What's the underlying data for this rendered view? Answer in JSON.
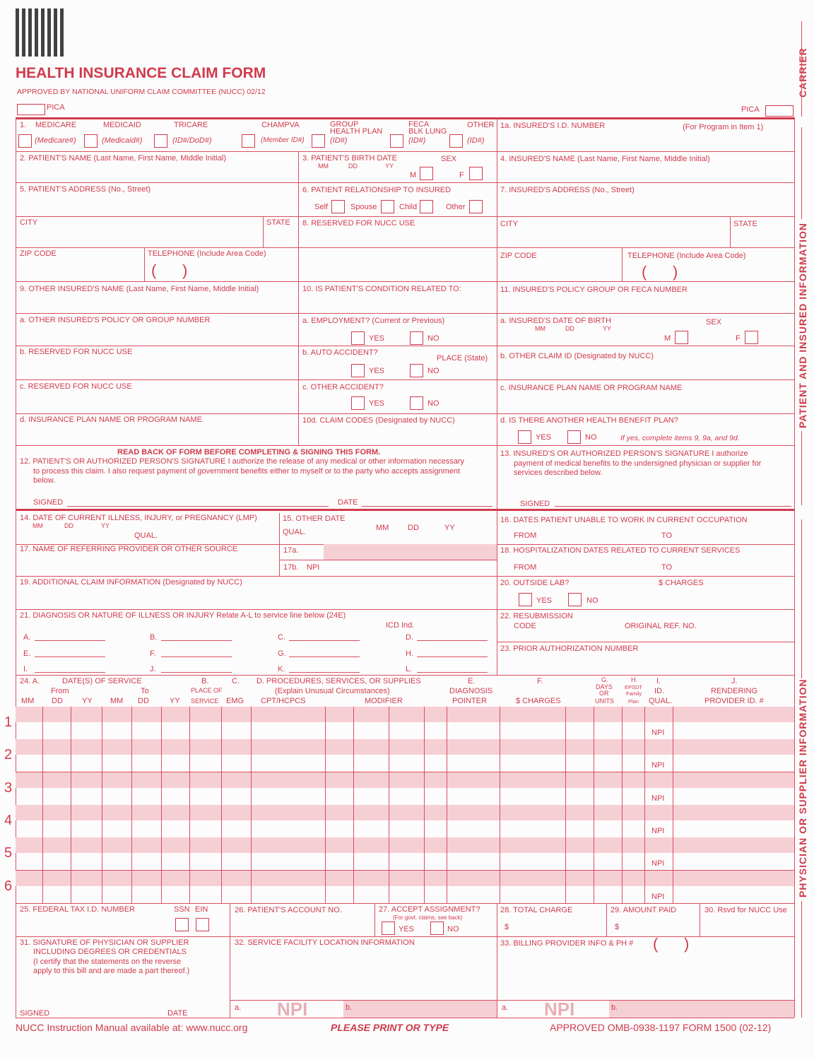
{
  "header": {
    "title": "HEALTH INSURANCE CLAIM FORM",
    "approved": "APPROVED BY NATIONAL UNIFORM CLAIM COMMITTEE (NUCC) 02/12",
    "pica_left": "PICA",
    "pica_right": "PICA"
  },
  "side": {
    "carrier": "CARRIER",
    "patient": "PATIENT AND INSURED INFORMATION",
    "physician": "PHYSICIAN OR SUPPLIER INFORMATION"
  },
  "item1": {
    "num": "1.",
    "programs": [
      "MEDICARE",
      "MEDICAID",
      "TRICARE",
      "CHAMPVA",
      "GROUP",
      "HEALTH PLAN",
      "FECA",
      "BLK LUNG",
      "OTHER"
    ],
    "ids": [
      "(Medicare#)",
      "(Medicaid#)",
      "(ID#/DoD#)",
      "(Member ID#)",
      "(ID#)",
      "(ID#)",
      "(ID#)"
    ]
  },
  "item1a": {
    "label": "1a. INSURED'S I.D. NUMBER",
    "note": "(For Program in Item 1)"
  },
  "item2": "2. PATIENT'S NAME (Last Name, First Name, Middle Initial)",
  "item3": {
    "label": "3. PATIENT'S BIRTH DATE",
    "sex": "SEX",
    "mm": "MM",
    "dd": "DD",
    "yy": "YY",
    "m": "M",
    "f": "F"
  },
  "item4": "4. INSURED'S NAME (Last Name, First Name, Middle Initial)",
  "item5": {
    "label": "5. PATIENT'S ADDRESS (No., Street)",
    "city": "CITY",
    "state": "STATE",
    "zip": "ZIP CODE",
    "tel": "TELEPHONE (Include Area Code)"
  },
  "item6": {
    "label": "6. PATIENT RELATIONSHIP TO INSURED",
    "options": [
      "Self",
      "Spouse",
      "Child",
      "Other"
    ]
  },
  "item7": {
    "label": "7. INSURED'S ADDRESS (No., Street)",
    "city": "CITY",
    "state": "STATE",
    "zip": "ZIP CODE",
    "tel": "TELEPHONE (Include Area Code)"
  },
  "item8": "8. RESERVED FOR NUCC USE",
  "item9": {
    "label": "9. OTHER INSURED'S NAME (Last Name, First Name, Middle Initial)",
    "a": "a. OTHER INSURED'S POLICY OR GROUP NUMBER",
    "b": "b. RESERVED FOR NUCC USE",
    "c": "c. RESERVED FOR NUCC USE",
    "d": "d. INSURANCE PLAN NAME OR PROGRAM NAME"
  },
  "item10": {
    "label": "10. IS PATIENT'S CONDITION RELATED TO:",
    "a": "a. EMPLOYMENT? (Current or Previous)",
    "b": "b. AUTO ACCIDENT?",
    "place": "PLACE (State)",
    "c": "c. OTHER ACCIDENT?",
    "d": "10d. CLAIM CODES (Designated by NUCC)",
    "yes": "YES",
    "no": "NO"
  },
  "item11": {
    "label": "11. INSURED'S POLICY GROUP OR FECA NUMBER",
    "a": "a. INSURED'S DATE OF BIRTH",
    "sex": "SEX",
    "b": "b. OTHER CLAIM ID (Designated by NUCC)",
    "c": "c. INSURANCE PLAN NAME OR PROGRAM NAME",
    "d": "d. IS THERE ANOTHER HEALTH BENEFIT PLAN?",
    "d_note": "If yes, complete items 9, 9a, and 9d."
  },
  "item12": {
    "readback": "READ BACK OF FORM BEFORE COMPLETING & SIGNING THIS FORM.",
    "line1": "12. PATIENT'S OR AUTHORIZED PERSON'S SIGNATURE  I authorize the release of any medical or other information necessary",
    "line2": "to process this claim. I also request payment of government benefits either to myself or to the party who accepts assignment",
    "line3": "below.",
    "signed": "SIGNED",
    "date": "DATE"
  },
  "item13": {
    "line1": "13. INSURED'S OR AUTHORIZED PERSON'S SIGNATURE I authorize",
    "line2": "payment of medical benefits to the undersigned physician or supplier for",
    "line3": "services described below.",
    "signed": "SIGNED"
  },
  "item14": {
    "label": "14. DATE OF CURRENT ILLNESS, INJURY, or PREGNANCY (LMP)",
    "qual": "QUAL."
  },
  "item15": {
    "label": "15. OTHER DATE",
    "qual": "QUAL."
  },
  "item16": {
    "label": "16. DATES PATIENT UNABLE TO WORK IN CURRENT OCCUPATION",
    "from": "FROM",
    "to": "TO"
  },
  "item17": {
    "label": "17. NAME OF REFERRING PROVIDER OR OTHER SOURCE",
    "a": "17a.",
    "b": "17b.",
    "npi": "NPI"
  },
  "item18": {
    "label": "18. HOSPITALIZATION DATES RELATED TO CURRENT SERVICES",
    "from": "FROM",
    "to": "TO"
  },
  "item19": "19. ADDITIONAL CLAIM INFORMATION (Designated by NUCC)",
  "item20": {
    "label": "20. OUTSIDE LAB?",
    "charges": "$ CHARGES"
  },
  "item21": {
    "label": "21. DIAGNOSIS OR NATURE OF ILLNESS OR INJURY  Relate A-L to service line below (24E)",
    "icd": "ICD Ind.",
    "letters": [
      "A.",
      "B.",
      "C.",
      "D.",
      "E.",
      "F.",
      "G.",
      "H.",
      "I.",
      "J.",
      "K.",
      "L."
    ]
  },
  "item22": {
    "label": "22. RESUBMISSION",
    "code": "CODE",
    "orig": "ORIGINAL REF. NO."
  },
  "item23": "23. PRIOR AUTHORIZATION NUMBER",
  "item24": {
    "a": "24. A.",
    "dates": "DATE(S) OF SERVICE",
    "from": "From",
    "to": "To",
    "b": "B.",
    "pos1": "PLACE OF",
    "pos2": "SERVICE",
    "c": "C.",
    "emg": "EMG",
    "d": "D. PROCEDURES, SERVICES, OR SUPPLIES",
    "d2": "(Explain Unusual Circumstances)",
    "cpt": "CPT/HCPCS",
    "mod": "MODIFIER",
    "e": "E.",
    "e2": "DIAGNOSIS",
    "e3": "POINTER",
    "f": "F.",
    "f2": "$ CHARGES",
    "g": "G.",
    "g2": "DAYS",
    "g3": "OR",
    "g4": "UNITS",
    "h": "H.",
    "h2": "EPSDT",
    "h3": "Family",
    "h4": "Plan",
    "i": "I.",
    "i2": "ID.",
    "i3": "QUAL.",
    "j": "J.",
    "j2": "RENDERING",
    "j3": "PROVIDER ID. #",
    "mm": "MM",
    "dd": "DD",
    "yy": "YY",
    "npi": "NPI",
    "lines": [
      "1",
      "2",
      "3",
      "4",
      "5",
      "6"
    ]
  },
  "item25": {
    "label": "25. FEDERAL TAX I.D. NUMBER",
    "ssn": "SSN",
    "ein": "EIN"
  },
  "item26": "26. PATIENT'S ACCOUNT NO.",
  "item27": {
    "label": "27. ACCEPT ASSIGNMENT?",
    "note": "(For govt. claims, see back)",
    "yes": "YES",
    "no": "NO"
  },
  "item28": {
    "label": "28. TOTAL CHARGE",
    "cur": "$"
  },
  "item29": {
    "label": "29. AMOUNT PAID",
    "cur": "$"
  },
  "item30": "30. Rsvd for NUCC Use",
  "item31": {
    "line1": "31. SIGNATURE OF PHYSICIAN OR SUPPLIER",
    "line2": "INCLUDING DEGREES OR CREDENTIALS",
    "line3": "(I certify that the statements on the reverse",
    "line4": "apply to this bill and are made a part thereof.)",
    "signed": "SIGNED",
    "date": "DATE"
  },
  "item32": {
    "label": "32. SERVICE FACILITY LOCATION INFORMATION",
    "a": "a.",
    "b": "b.",
    "npi": "NPI"
  },
  "item33": {
    "label": "33. BILLING PROVIDER INFO & PH #",
    "a": "a.",
    "b": "b.",
    "npi": "NPI"
  },
  "footer": {
    "left": "NUCC Instruction Manual available at: www.nucc.org",
    "center": "PLEASE PRINT OR TYPE",
    "right": "APPROVED OMB-0938-1197 FORM 1500 (02-12)"
  },
  "colors": {
    "form_red": "#cf3a4c",
    "shade": "#f6cfd5"
  }
}
